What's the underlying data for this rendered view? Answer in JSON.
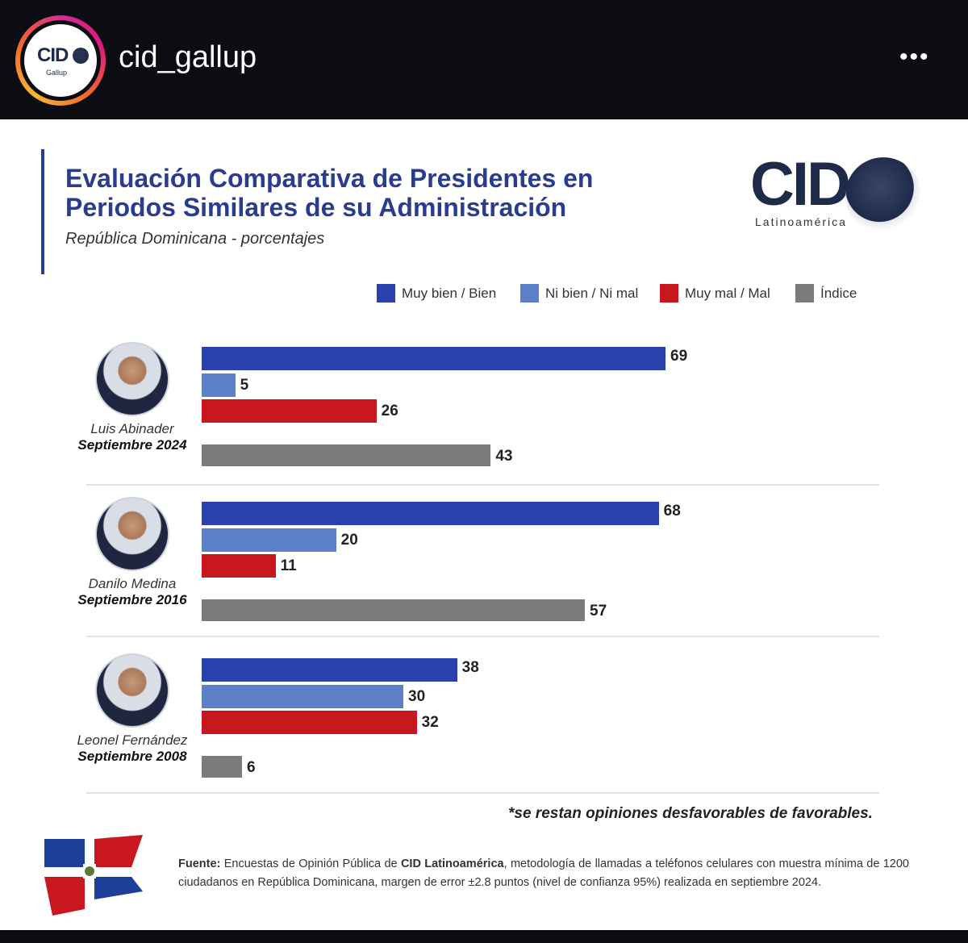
{
  "header": {
    "username": "cid_gallup",
    "avatar_text": "CID",
    "avatar_sub": "Gallup",
    "more_icon": "more-horizontal-icon"
  },
  "post": {
    "title_line1": "Evaluación Comparativa de Presidentes en",
    "title_line2": "Periodos Similares de su Administración",
    "subtitle": "República Dominicana - porcentajes",
    "logo_text": "CID",
    "logo_sub": "Latinoamérica",
    "note": "*se restan opiniones desfavorables de favorables.",
    "source_label": "Fuente:",
    "source_a": " Encuestas de Opinión Pública de ",
    "source_bold": "CID Latinoamérica",
    "source_b": ", metodología de llamadas a teléfonos celulares con muestra mínima de 1200 ciudadanos en República Dominicana, margen de error ±2.8 puntos (nivel de confianza 95%) realizada en septiembre 2024."
  },
  "colors": {
    "muy_bien": "#2a40ad",
    "ni_bien": "#5b80c6",
    "muy_mal": "#c8171e",
    "indice": "#7b7b7b"
  },
  "chart_data": {
    "type": "bar",
    "orientation": "horizontal",
    "title": "Evaluación Comparativa de Presidentes en Periodos Similares de su Administración",
    "subtitle": "República Dominicana - porcentajes",
    "legend": [
      "Muy bien / Bien",
      "Ni bien / Ni mal",
      "Muy mal / Mal",
      "Índice"
    ],
    "legend_position": "top",
    "xlim": [
      0,
      100
    ],
    "groups": [
      {
        "name": "Luis Abinader",
        "period": "Septiembre 2024",
        "values": [
          69,
          5,
          26,
          43
        ]
      },
      {
        "name": "Danilo Medina",
        "period": "Septiembre 2016",
        "values": [
          68,
          20,
          11,
          57
        ]
      },
      {
        "name": "Leonel Fernández",
        "period": "Septiembre 2008",
        "values": [
          38,
          30,
          32,
          6
        ]
      }
    ]
  }
}
